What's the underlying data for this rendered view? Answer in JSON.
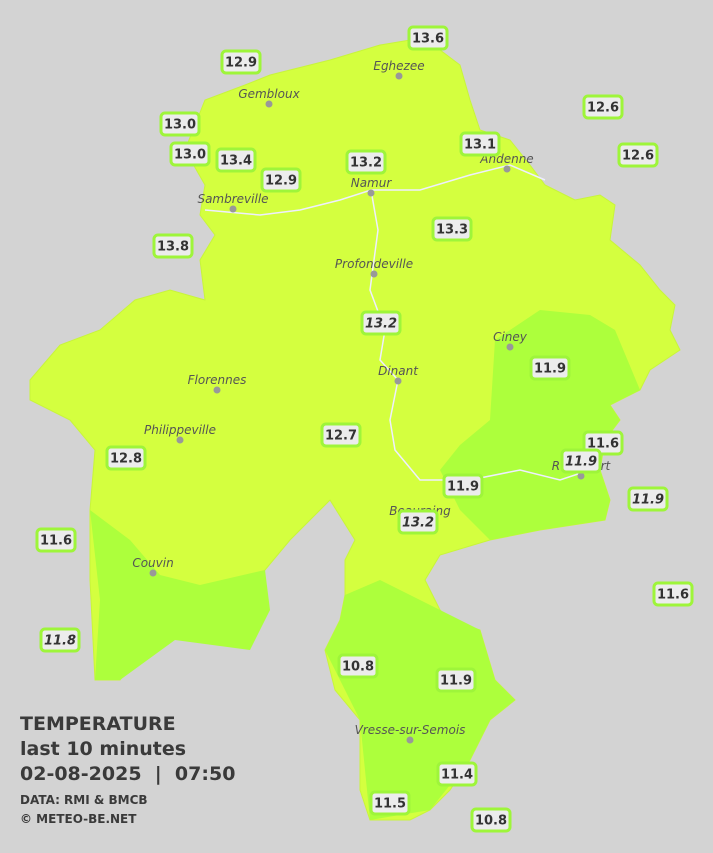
{
  "legend": {
    "title": "TEMPERATURE",
    "subtitle": "last 10 minutes",
    "timestamp": "02-08-2025  |  07:50",
    "source": "DATA: RMI & BMCB",
    "credit": "© METEO-BE.NET"
  },
  "cities": [
    "Eghezee",
    "Gembloux",
    "Andenne",
    "Namur",
    "Sambreville",
    "Profondeville",
    "Ciney",
    "Dinant",
    "Florennes",
    "Philippeville",
    "Rochefort",
    "Beauraing",
    "Couvin",
    "Vresse-sur-Semois"
  ],
  "stations": [
    {
      "label": "13.6",
      "italic": false
    },
    {
      "label": "12.9",
      "italic": false
    },
    {
      "label": "12.6",
      "italic": false
    },
    {
      "label": "13.0",
      "italic": false
    },
    {
      "label": "13.1",
      "italic": false
    },
    {
      "label": "13.0",
      "italic": false
    },
    {
      "label": "13.4",
      "italic": false
    },
    {
      "label": "13.2",
      "italic": false
    },
    {
      "label": "12.6",
      "italic": false
    },
    {
      "label": "12.9",
      "italic": false
    },
    {
      "label": "13.3",
      "italic": false
    },
    {
      "label": "13.8",
      "italic": false
    },
    {
      "label": "13.2",
      "italic": true
    },
    {
      "label": "11.9",
      "italic": false
    },
    {
      "label": "11.6",
      "italic": false
    },
    {
      "label": "11.9",
      "italic": true
    },
    {
      "label": "12.7",
      "italic": false
    },
    {
      "label": "12.8",
      "italic": false
    },
    {
      "label": "11.9",
      "italic": false
    },
    {
      "label": "11.9",
      "italic": true
    },
    {
      "label": "13.2",
      "italic": true
    },
    {
      "label": "11.6",
      "italic": false
    },
    {
      "label": "11.6",
      "italic": false
    },
    {
      "label": "11.8",
      "italic": true
    },
    {
      "label": "10.8",
      "italic": false
    },
    {
      "label": "11.9",
      "italic": false
    },
    {
      "label": "11.4",
      "italic": false
    },
    {
      "label": "11.5",
      "italic": false
    },
    {
      "label": "10.8",
      "italic": false
    }
  ]
}
